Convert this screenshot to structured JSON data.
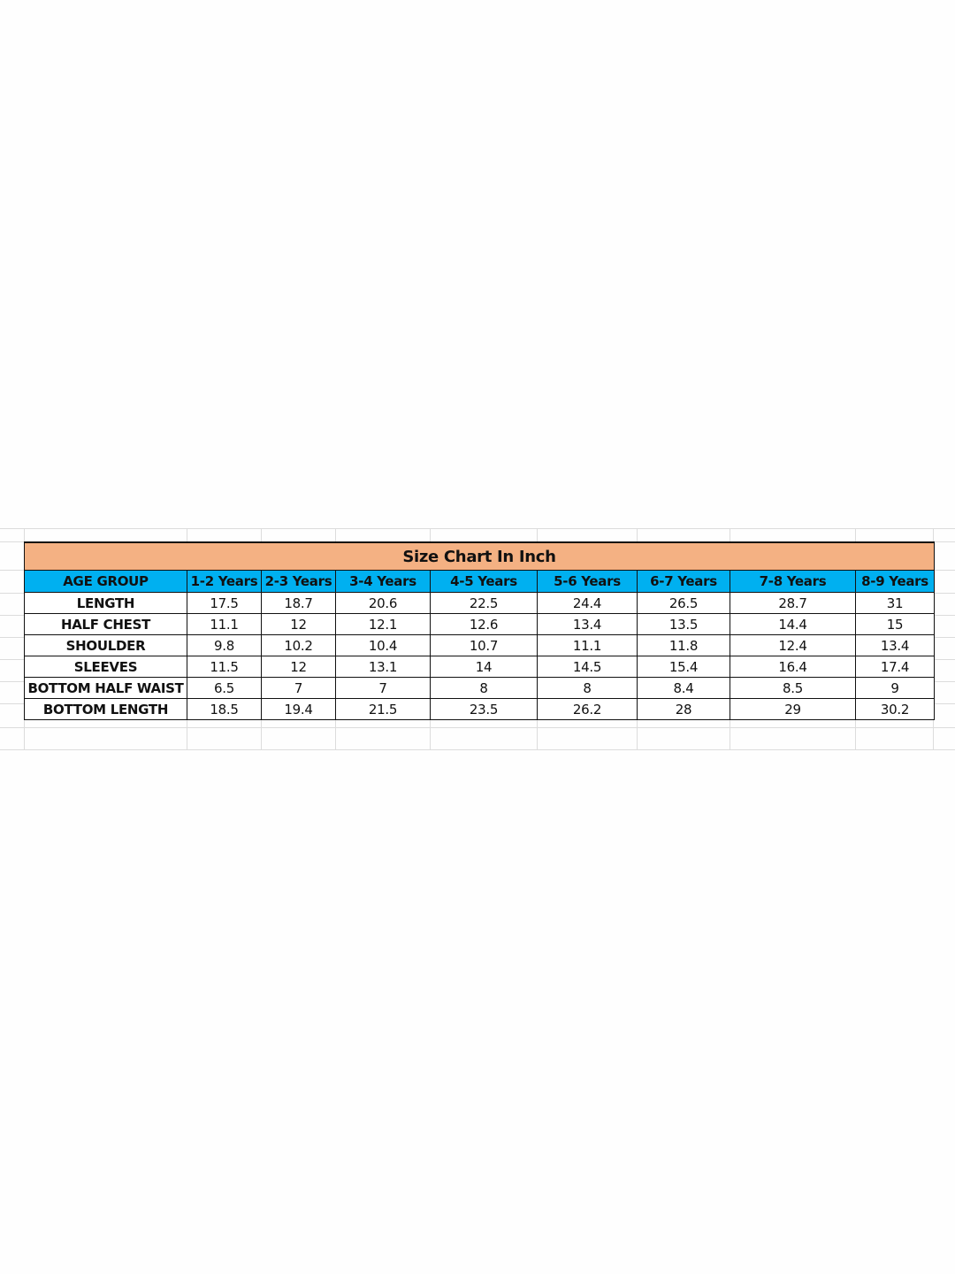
{
  "title": "Size Chart In Inch",
  "colors": {
    "title_bg": "#f4b183",
    "header_bg": "#00b0f0"
  },
  "header": [
    "AGE GROUP",
    "1-2 Years",
    "2-3 Years",
    "3-4 Years",
    "4-5 Years",
    "5-6 Years",
    "6-7 Years",
    "7-8 Years",
    "8-9 Years"
  ],
  "rows": [
    {
      "label": "LENGTH",
      "values": [
        "17.5",
        "18.7",
        "20.6",
        "22.5",
        "24.4",
        "26.5",
        "28.7",
        "31"
      ]
    },
    {
      "label": "HALF CHEST",
      "values": [
        "11.1",
        "12",
        "12.1",
        "12.6",
        "13.4",
        "13.5",
        "14.4",
        "15"
      ]
    },
    {
      "label": "SHOULDER",
      "values": [
        "9.8",
        "10.2",
        "10.4",
        "10.7",
        "11.1",
        "11.8",
        "12.4",
        "13.4"
      ]
    },
    {
      "label": "SLEEVES",
      "values": [
        "11.5",
        "12",
        "13.1",
        "14",
        "14.5",
        "15.4",
        "16.4",
        "17.4"
      ]
    },
    {
      "label": "BOTTOM  HALF WAIST",
      "values": [
        "6.5",
        "7",
        "7",
        "8",
        "8",
        "8.4",
        "8.5",
        "9"
      ]
    },
    {
      "label": "BOTTOM LENGTH",
      "values": [
        "18.5",
        "19.4",
        "21.5",
        "23.5",
        "26.2",
        "28",
        "29",
        "30.2"
      ]
    }
  ]
}
